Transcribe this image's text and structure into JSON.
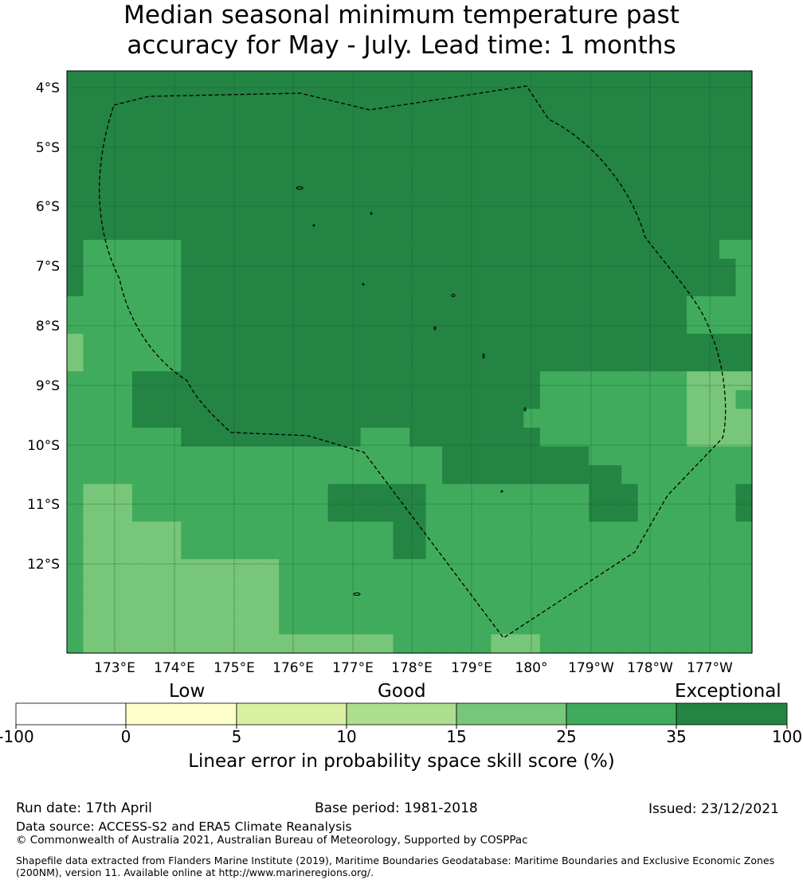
{
  "title_line1": "Median seasonal minimum temperature past",
  "title_line2": "accuracy for May - July. Lead time: 1 months",
  "map": {
    "lat_labels": [
      "4°S",
      "5°S",
      "6°S",
      "7°S",
      "8°S",
      "9°S",
      "10°S",
      "11°S",
      "12°S"
    ],
    "lon_labels": [
      "173°E",
      "174°E",
      "175°E",
      "176°E",
      "177°E",
      "178°E",
      "179°E",
      "180°",
      "179°W",
      "178°W",
      "177°W"
    ],
    "outline": "dashed-boundary",
    "grid_value_classes": [
      "dddddddddddddddddddddddddddddddddddddddddd",
      "dddddddddddddddddddddddddddddddddddddddddd",
      "dddddddddddddddddddddddddddddddddddddddddd",
      "dddddddddddddddddddddddddddddddddddddddddd",
      "dddddddddddddddddddddddddddddddddddddddddd",
      "dddddddddddddddddddddddddddddddddddddddddd",
      "dddddddddddddddddddddddddddddddddddddddddd",
      "dddddddddddddddddddddddddddddddddddddddddd",
      "dddddddddddddddddddddddddddddddddddddddddd",
      "dMMMMMMdddddddddddddddddddddddddddddddddMM",
      "dMMMMMMddddddddddddddddddddddddddddddddddM",
      "dMMMMMMddddddddddddddddddddddddddddddddddM",
      "MMMMMMMdddddddddddddddddddddddddddddddMMMM",
      "MMMMMMMdddddddddddddddddddddddddddddddMMMM",
      "LMMMMMMddddddddddddddddddddddddddddddddddd",
      "LMMMMMMddddddddddddddddddddddddddddddddddd",
      "MMMMdddddddddddddddddddddddddMMMMMMMMMLLLL",
      "MMMMdddddddddddddddddddddddddMMMMMMMMMLLLM",
      "MMMMddddddddddddddddddddddddMMMMMMMMMMLLLL",
      "MMMMMMMdddddddddddMMMddddddddMMMMMMMMMLLLL",
      "MMMMMMMMMMMMMMMMMMMMMMMdddddddddMMMMMMMMMM",
      "MMMMMMMMMMMMMMMMMMMMMMMdddddddddddMMMMMMMM",
      "MLLLMMMMMMMMMMMMddddddMMMMMMMMMMdddMMMMMMd",
      "MLLLMMMMMMMMMMMMddddddMMMMMMMMMMdddMMMMMMd",
      "MLLLLLLMMMMMMMMMMMMMddMMMMMMMMMMMMMMMMMMMM",
      "MLLLLLLMMMMMMMMMMMMMddMMMMMMMMMMMMMMMMMMMM",
      "MLLLLLLLLLLLLMMMMMMMMMMMMMMMMMMMMMMMMMMMMM",
      "MLLLLLLLLLLLLMMMMMMMMMMMMMMMMMMMMMMMMMMMMM",
      "MLLLLLLLLLLLLMMMMMMMMMMMMMMMMMMMMMMMMMMMMM",
      "MLLLLLLLLLLLLMMMMMMMMMMMMMMMMMMMMMMMMMMMMM",
      "MLLLLLLLLLLLLLLLLLLLMMMMMMLLLMMMMMMMMMMMMMd"
    ]
  },
  "colorbar": {
    "categories": [
      "Low",
      "Good",
      "Exceptional"
    ],
    "ticks": [
      "-100",
      "0",
      "5",
      "10",
      "15",
      "25",
      "35",
      "100"
    ],
    "colors": [
      "#ffffff",
      "#ffffcc",
      "#d9f0a3",
      "#addd8e",
      "#78c679",
      "#41ab5d",
      "#238443"
    ],
    "label": "Linear error in probability space skill score (%)"
  },
  "map_colors": {
    "d": "#238443",
    "M": "#41ab5d",
    "L": "#78c679"
  },
  "footer": {
    "run_date": "Run date: 17th April",
    "base_period": "Base period: 1981-2018",
    "issued": "Issued: 23/12/2021",
    "data_source": "Data source: ACCESS-S2 and ERA5 Climate Reanalysis",
    "copyright": "© Commonwealth of Australia 2021, Australian Bureau of Meteorology, Supported by COSPPac",
    "shapefile": "Shapefile data extracted from Flanders Marine Institute (2019), Maritime Boundaries Geodatabase: Maritime Boundaries and Exclusive Economic Zones (200NM), version 11. Available online at http://www.marineregions.org/."
  }
}
